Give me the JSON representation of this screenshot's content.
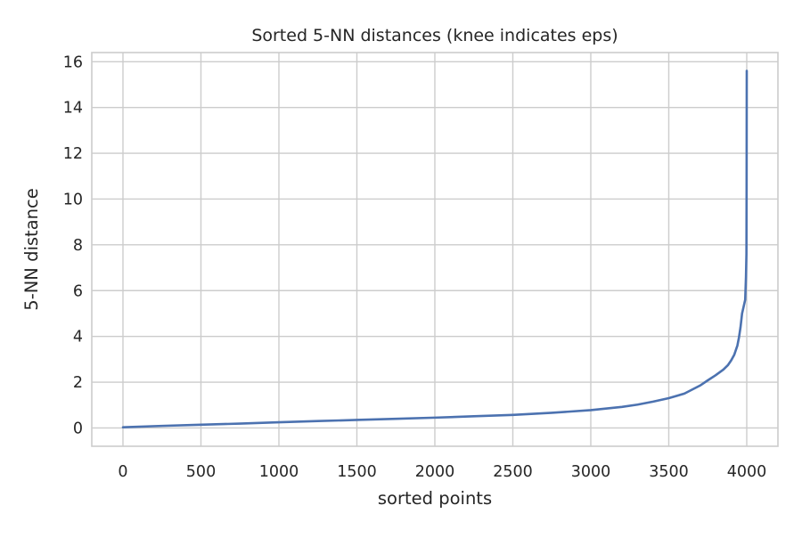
{
  "chart_data": {
    "type": "line",
    "title": "Sorted 5-NN distances (knee indicates eps)",
    "xlabel": "sorted points",
    "ylabel": "5-NN distance",
    "xlim": [
      -200,
      4200
    ],
    "ylim": [
      -0.8,
      16.4
    ],
    "xticks": [
      0,
      500,
      1000,
      1500,
      2000,
      2500,
      3000,
      3500,
      4000
    ],
    "yticks": [
      0,
      2,
      4,
      6,
      8,
      10,
      12,
      14,
      16
    ],
    "grid": true,
    "series": [
      {
        "color": "#4c72b0",
        "x": [
          0,
          250,
          500,
          750,
          1000,
          1250,
          1500,
          1750,
          2000,
          2250,
          2500,
          2750,
          3000,
          3200,
          3300,
          3400,
          3500,
          3600,
          3700,
          3750,
          3800,
          3850,
          3880,
          3900,
          3920,
          3940,
          3950,
          3960,
          3970,
          3980,
          3990,
          3995,
          3998,
          3999,
          4000
        ],
        "y": [
          0.03,
          0.09,
          0.14,
          0.19,
          0.25,
          0.3,
          0.35,
          0.4,
          0.45,
          0.51,
          0.57,
          0.66,
          0.78,
          0.92,
          1.02,
          1.15,
          1.3,
          1.5,
          1.85,
          2.08,
          2.3,
          2.55,
          2.75,
          2.95,
          3.2,
          3.6,
          3.95,
          4.4,
          5.0,
          5.3,
          5.6,
          6.6,
          7.6,
          10.5,
          15.6
        ]
      }
    ]
  }
}
